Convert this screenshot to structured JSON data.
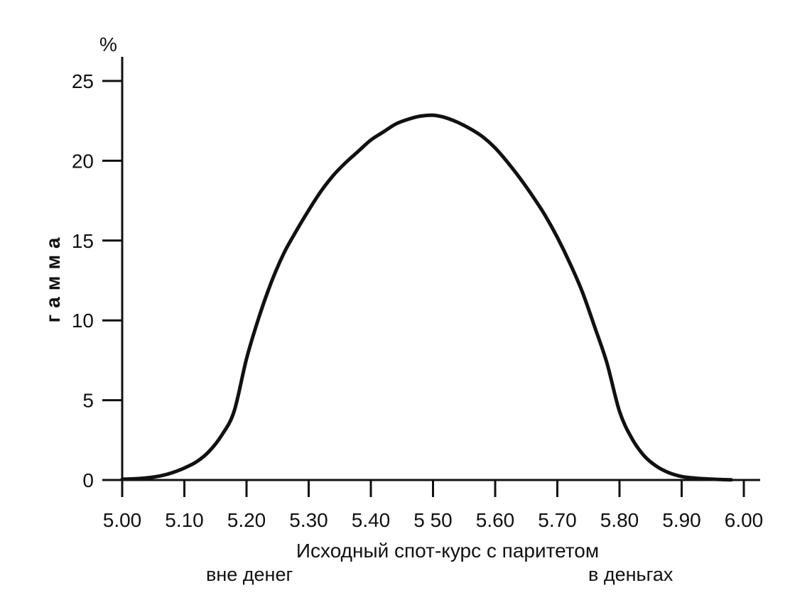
{
  "chart_data": {
    "type": "line",
    "unit_label": "%",
    "ylabel": "гамма",
    "xlabel": "Исходный спот-курс с паритетом",
    "xlim": [
      5.0,
      6.0
    ],
    "ylim": [
      0,
      25
    ],
    "x_ticks": [
      "5.00",
      "5.10",
      "5.20",
      "5.30",
      "5.40",
      "5 50",
      "5.60",
      "5.70",
      "5.80",
      "5.90",
      "6.00"
    ],
    "y_ticks": [
      "0",
      "5",
      "10",
      "15",
      "20",
      "25"
    ],
    "annotations": {
      "left": "вне денег",
      "right": "в деньгах"
    },
    "grid": false,
    "series": [
      {
        "x": [
          5.0,
          5.03,
          5.06,
          5.08,
          5.1,
          5.12,
          5.14,
          5.16,
          5.18,
          5.2,
          5.22,
          5.24,
          5.26,
          5.28,
          5.3,
          5.32,
          5.34,
          5.36,
          5.38,
          5.4,
          5.42,
          5.44,
          5.46,
          5.48,
          5.5,
          5.52,
          5.54,
          5.56,
          5.58,
          5.6,
          5.62,
          5.64,
          5.66,
          5.68,
          5.7,
          5.72,
          5.74,
          5.76,
          5.78,
          5.8,
          5.82,
          5.84,
          5.86,
          5.88,
          5.9,
          5.92,
          5.95,
          5.98
        ],
        "values": [
          0.05,
          0.1,
          0.25,
          0.45,
          0.75,
          1.15,
          1.8,
          2.8,
          4.3,
          7.6,
          10.2,
          12.4,
          14.2,
          15.6,
          16.9,
          18.1,
          19.1,
          19.9,
          20.6,
          21.3,
          21.8,
          22.3,
          22.6,
          22.8,
          22.85,
          22.7,
          22.4,
          22.0,
          21.5,
          20.8,
          19.9,
          18.9,
          17.8,
          16.6,
          15.2,
          13.6,
          11.8,
          9.6,
          7.3,
          4.3,
          2.6,
          1.5,
          0.85,
          0.45,
          0.22,
          0.12,
          0.05,
          0.01
        ]
      }
    ]
  }
}
